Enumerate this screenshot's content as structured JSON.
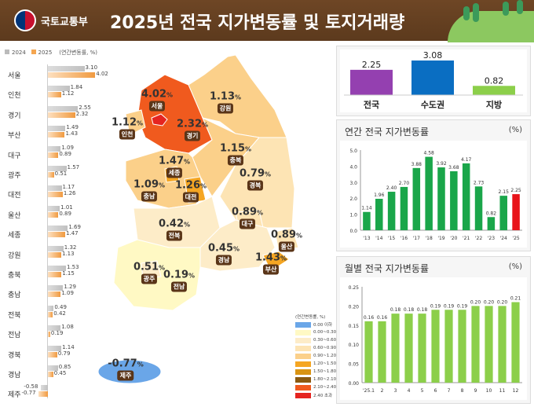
{
  "header": {
    "org": "국토교통부",
    "title": "2025년 전국 지가변동률 및 토지거래량"
  },
  "left_legend": {
    "y2024": "2024",
    "y2025": "2025",
    "unit": "(연간변동률, %)"
  },
  "regions": [
    {
      "name": "서울",
      "v2024": "3.10",
      "v2025": "4.02"
    },
    {
      "name": "인천",
      "v2024": "1.84",
      "v2025": "1.12"
    },
    {
      "name": "경기",
      "v2024": "2.55",
      "v2025": "2.32"
    },
    {
      "name": "부산",
      "v2024": "1.49",
      "v2025": "1.43"
    },
    {
      "name": "대구",
      "v2024": "1.09",
      "v2025": "0.89"
    },
    {
      "name": "광주",
      "v2024": "1.57",
      "v2025": "0.51"
    },
    {
      "name": "대전",
      "v2024": "1.17",
      "v2025": "1.26"
    },
    {
      "name": "울산",
      "v2024": "1.01",
      "v2025": "0.89"
    },
    {
      "name": "세종",
      "v2024": "1.69",
      "v2025": "1.47"
    },
    {
      "name": "강원",
      "v2024": "1.32",
      "v2025": "1.13"
    },
    {
      "name": "충북",
      "v2024": "1.53",
      "v2025": "1.15"
    },
    {
      "name": "충남",
      "v2024": "1.29",
      "v2025": "1.09"
    },
    {
      "name": "전북",
      "v2024": "0.49",
      "v2025": "0.42"
    },
    {
      "name": "전남",
      "v2024": "1.08",
      "v2025": "0.19"
    },
    {
      "name": "경북",
      "v2024": "1.14",
      "v2025": "0.79"
    },
    {
      "name": "경남",
      "v2024": "0.85",
      "v2025": "0.45"
    },
    {
      "name": "제주",
      "v2024": "-0.58",
      "v2025": "-0.77"
    }
  ],
  "map_labels": [
    {
      "name": "서울",
      "value": "4.02"
    },
    {
      "name": "강원",
      "value": "1.13"
    },
    {
      "name": "인천",
      "value": "1.12"
    },
    {
      "name": "경기",
      "value": "2.32"
    },
    {
      "name": "충북",
      "value": "1.15"
    },
    {
      "name": "세종",
      "value": "1.47"
    },
    {
      "name": "경북",
      "value": "0.79"
    },
    {
      "name": "충남",
      "value": "1.09"
    },
    {
      "name": "대전",
      "value": "1.26"
    },
    {
      "name": "대구",
      "value": "0.89"
    },
    {
      "name": "전북",
      "value": "0.42"
    },
    {
      "name": "울산",
      "value": "0.89"
    },
    {
      "name": "경남",
      "value": "0.45"
    },
    {
      "name": "부산",
      "value": "1.43"
    },
    {
      "name": "광주",
      "value": "0.51"
    },
    {
      "name": "전남",
      "value": "0.19"
    },
    {
      "name": "제주",
      "value": "-0.77"
    }
  ],
  "percent": "%",
  "map_legend": {
    "title": "(연간변동률, %)",
    "items": [
      {
        "label": "0.00 이하",
        "color": "#6aa6e8"
      },
      {
        "label": "0.00~0.30",
        "color": "#fff9c4"
      },
      {
        "label": "0.30~0.60",
        "color": "#fdecc8"
      },
      {
        "label": "0.60~0.90",
        "color": "#fde4b4"
      },
      {
        "label": "0.90~1.20",
        "color": "#fbd08a"
      },
      {
        "label": "1.20~1.50",
        "color": "#f5a623"
      },
      {
        "label": "1.50~1.80",
        "color": "#d99413"
      },
      {
        "label": "1.80~2.10",
        "color": "#8b5a10"
      },
      {
        "label": "2.10~2.40",
        "color": "#f05a1e"
      },
      {
        "label": "2.40 초과",
        "color": "#e52420"
      }
    ]
  },
  "chart_data": [
    {
      "type": "bar",
      "title": "",
      "categories": [
        "전국",
        "수도권",
        "지방"
      ],
      "values": [
        2.25,
        3.08,
        0.82
      ],
      "colors": [
        "#9440b0",
        "#0a6ec2",
        "#8ccf4a"
      ],
      "ylim": [
        0,
        3.5
      ]
    },
    {
      "type": "bar",
      "title": "연간 전국 지가변동률",
      "unit": "(%)",
      "categories": [
        "'13",
        "'14",
        "'15",
        "'16",
        "'17",
        "'18",
        "'19",
        "'20",
        "'21",
        "'22",
        "'23",
        "'24",
        "'25"
      ],
      "values": [
        1.14,
        1.96,
        2.4,
        2.7,
        3.88,
        4.58,
        3.92,
        3.68,
        4.17,
        2.73,
        0.82,
        2.15,
        2.25
      ],
      "labels": [
        "1.14",
        "1.96",
        "2.40",
        "2.70",
        "3.88",
        "4.58",
        "3.92",
        "3.68",
        "4.17",
        "2.73",
        "0.82",
        "2.15",
        "2.25"
      ],
      "yticks": [
        "0.0",
        "1.0",
        "2.0",
        "3.0",
        "4.0",
        "5.0"
      ],
      "ylim": [
        0,
        5
      ],
      "color": "#1aa64a",
      "highlight_color": "#e8141a"
    },
    {
      "type": "bar",
      "title": "월별 전국 지가변동률",
      "unit": "(%)",
      "categories": [
        "'25.1",
        "2",
        "3",
        "4",
        "5",
        "6",
        "7",
        "8",
        "9",
        "10",
        "11",
        "12"
      ],
      "values": [
        0.16,
        0.16,
        0.18,
        0.18,
        0.18,
        0.19,
        0.19,
        0.19,
        0.2,
        0.2,
        0.2,
        0.21
      ],
      "labels": [
        "0.16",
        "0.16",
        "0.18",
        "0.18",
        "0.18",
        "0.19",
        "0.19",
        "0.19",
        "0.20",
        "0.20",
        "0.20",
        "0.21"
      ],
      "yticks": [
        "0.00",
        "0.05",
        "0.10",
        "0.15",
        "0.20",
        "0.25"
      ],
      "ylim": [
        0,
        0.25
      ],
      "color": "#8ccf4a"
    }
  ]
}
